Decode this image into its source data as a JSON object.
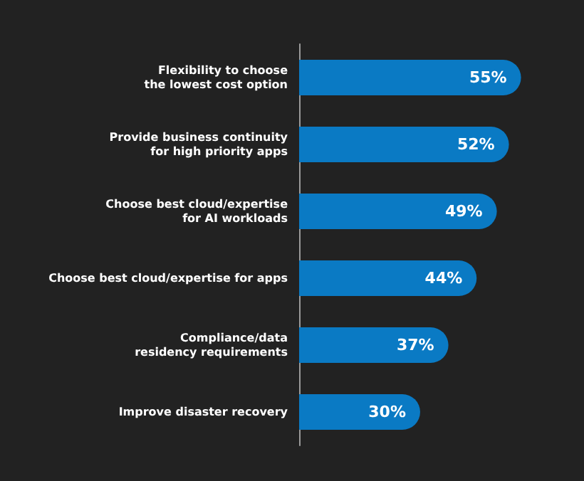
{
  "chart_data": {
    "type": "bar",
    "orientation": "horizontal",
    "categories": [
      "Flexibility to choose\nthe lowest cost option",
      "Provide business continuity\nfor high priority apps",
      "Choose best cloud/expertise\nfor AI workloads",
      "Choose best cloud/expertise for apps",
      "Compliance/data\nresidency requirements",
      "Improve disaster recovery"
    ],
    "values": [
      55,
      52,
      49,
      44,
      37,
      30
    ],
    "value_labels": [
      "55%",
      "52%",
      "49%",
      "44%",
      "37%",
      "30%"
    ],
    "color": "#0a7ac4",
    "tick_labels": "y"
  }
}
